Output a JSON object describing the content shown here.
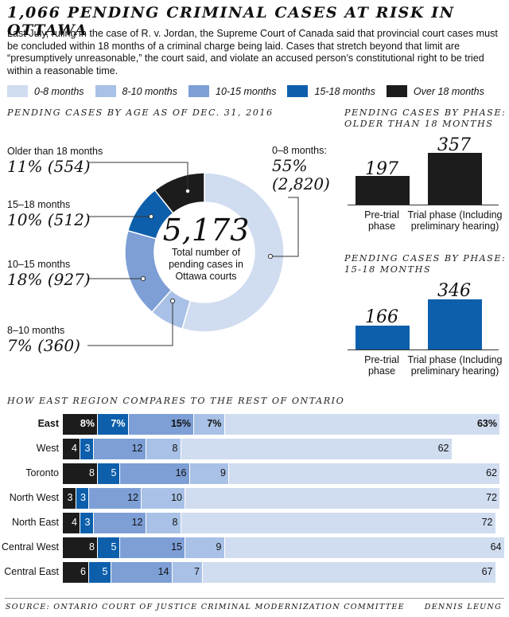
{
  "title": "1,066 PENDING CRIMINAL CASES AT RISK IN OTTAWA",
  "intro": "Last July, ruling in the case of R. v. Jordan, the Supreme Court of Canada said that provincial court cases must be concluded within 18 months of a criminal charge being laid. Cases that stretch beyond that limit are “presumptively unreasonable,” the court said, and violate an accused person’s constitutional right to be tried within a reasonable time.",
  "legend": [
    {
      "label": "0-8 months",
      "color": "#d0dcf0"
    },
    {
      "label": "8-10 months",
      "color": "#a9c1e6"
    },
    {
      "label": "10-15 months",
      "color": "#7d9fd6"
    },
    {
      "label": "15-18 months",
      "color": "#0d5fac"
    },
    {
      "label": "Over 18 months",
      "color": "#1c1c1c"
    }
  ],
  "donut_section_title": "PENDING CASES BY AGE AS OF DEC. 31, 2016",
  "phase_older_title": "PENDING CASES BY PHASE:\nOLDER THAN 18 MONTHS",
  "phase_1518_title": "PENDING CASES BY PHASE:\n15-18 MONTHS",
  "east_title": "HOW EAST REGION COMPARES TO THE REST OF ONTARIO",
  "donut": {
    "total": "5,173",
    "caption": "Total number of pending cases in Ottawa courts",
    "labels": [
      {
        "name": "Older than 18 months",
        "value": "11% (554)"
      },
      {
        "name": "15–18 months",
        "value": "10% (512)"
      },
      {
        "name": "10–15 months",
        "value": "18% (927)"
      },
      {
        "name": "8–10 months",
        "value": "7% (360)"
      },
      {
        "name": "0–8 months:",
        "value1": "55%",
        "value2": "(2,820)"
      }
    ]
  },
  "footer": {
    "source": "SOURCE: ONTARIO COURT OF JUSTICE CRIMINAL MODERNIZATION COMMITTEE",
    "credit": "DENNIS LEUNG"
  },
  "chart_data": [
    {
      "type": "pie",
      "title": "PENDING CASES BY AGE AS OF DEC. 31, 2016",
      "categories": [
        "0–8 months",
        "8–10 months",
        "10–15 months",
        "15–18 months",
        "Older than 18 months"
      ],
      "values": [
        2820,
        360,
        927,
        512,
        554
      ],
      "percents": [
        55,
        7,
        18,
        10,
        11
      ],
      "colors": [
        "#d0dcf0",
        "#a9c1e6",
        "#7d9fd6",
        "#0d5fac",
        "#1c1c1c"
      ]
    },
    {
      "type": "bar",
      "title": "PENDING CASES BY PHASE: OLDER THAN 18 MONTHS",
      "categories": [
        "Pre-trial phase",
        "Trial phase (Including preliminary hearing)"
      ],
      "values": [
        197,
        357
      ],
      "color": "#1c1c1c"
    },
    {
      "type": "bar",
      "title": "PENDING CASES BY PHASE: 15-18 MONTHS",
      "categories": [
        "Pre-trial phase",
        "Trial phase (Including preliminary hearing)"
      ],
      "values": [
        166,
        346
      ],
      "color": "#0d5fac"
    },
    {
      "type": "bar",
      "stacked": true,
      "orientation": "horizontal",
      "title": "HOW EAST REGION COMPARES TO THE REST OF ONTARIO",
      "categories": [
        "East",
        "West",
        "Toronto",
        "North West",
        "North East",
        "Central West",
        "Central East"
      ],
      "series": [
        {
          "name": "Over 18 months",
          "color": "#1c1c1c",
          "values": [
            8,
            4,
            8,
            3,
            4,
            8,
            6
          ],
          "labels": [
            "8%",
            "4",
            "8",
            "3",
            "4",
            "8",
            "6"
          ]
        },
        {
          "name": "15-18 months",
          "color": "#0d5fac",
          "values": [
            7,
            3,
            5,
            3,
            3,
            5,
            5
          ],
          "labels": [
            "7%",
            "3",
            "5",
            "3",
            "3",
            "5",
            "5"
          ]
        },
        {
          "name": "10-15 months",
          "color": "#7d9fd6",
          "values": [
            15,
            12,
            16,
            12,
            12,
            15,
            14
          ],
          "labels": [
            "15%",
            "12",
            "16",
            "12",
            "12",
            "15",
            "14"
          ]
        },
        {
          "name": "8-10 months",
          "color": "#a9c1e6",
          "values": [
            7,
            8,
            9,
            10,
            8,
            9,
            7
          ],
          "labels": [
            "7%",
            "8",
            "9",
            "10",
            "8",
            "9",
            "7"
          ]
        },
        {
          "name": "0-8 months",
          "color": "#d0dcf0",
          "values": [
            63,
            62,
            62,
            72,
            72,
            64,
            67
          ],
          "labels": [
            "63%",
            "62",
            "62",
            "72",
            "72",
            "64",
            "67"
          ]
        }
      ]
    }
  ]
}
